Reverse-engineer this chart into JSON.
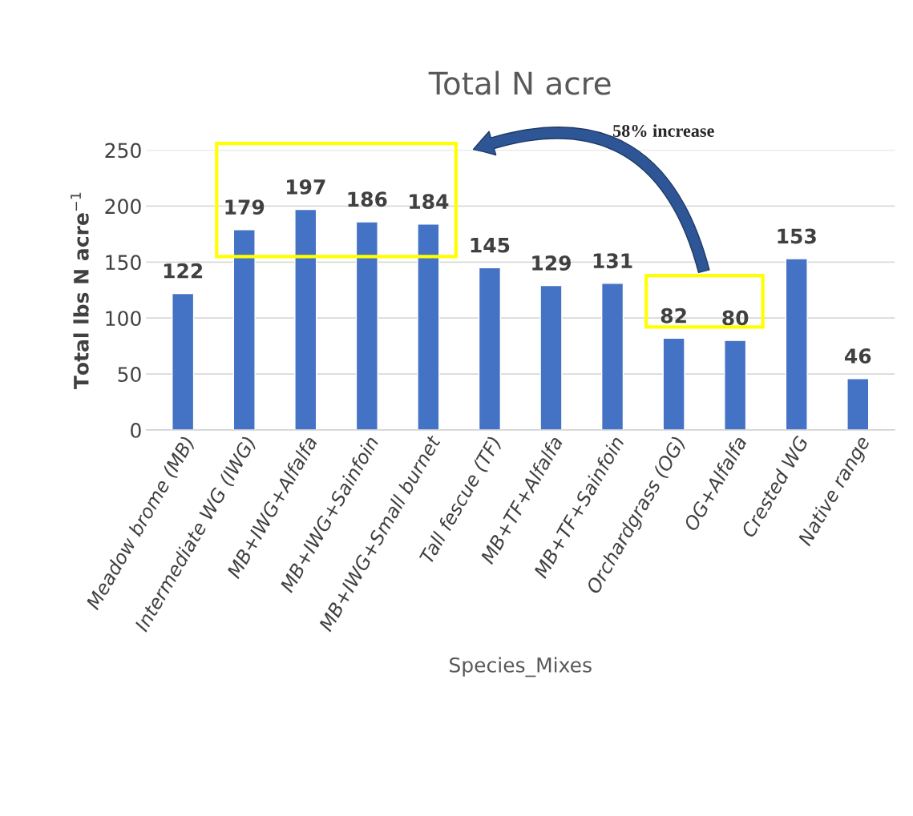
{
  "chart_data": {
    "type": "bar",
    "title": "Total N acre",
    "xlabel": "Species_Mixes",
    "ylabel": "Total lbs N acre$^{−1}$",
    "categories": [
      "Meadow brome (MB)",
      "Intermediate WG (IWG)",
      "MB+IWG+Alfalfa",
      "MB+IWG+Sainfoin",
      "MB+IWG+Small burnet",
      "Tall fescue (TF)",
      "MB+TF+Alfalfa",
      "MB+TF+Sainfoin",
      "Orchardgrass (OG)",
      "OG+Alfalfa",
      "Crested WG",
      "Native range"
    ],
    "values": [
      122,
      179,
      197,
      186,
      184,
      145,
      129,
      131,
      82,
      80,
      153,
      46
    ],
    "color": "#4472c4",
    "ylim": [
      0,
      250
    ],
    "yticks": [
      0,
      50,
      100,
      150,
      200,
      250
    ],
    "grid": "y",
    "data_labels": true,
    "annotations": [
      "58% increase"
    ]
  }
}
